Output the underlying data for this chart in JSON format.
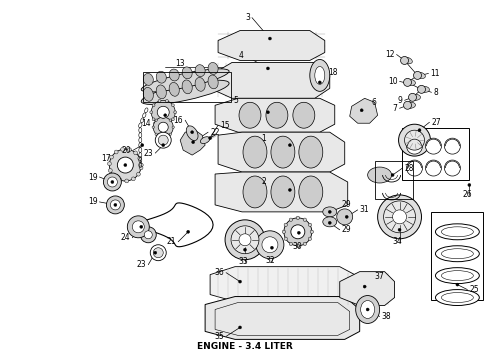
{
  "title": "ENGINE - 3.4 LITER",
  "title_fontsize": 6.5,
  "title_fontweight": "bold",
  "background_color": "#ffffff",
  "line_color": "#000000",
  "figsize": [
    4.9,
    3.6
  ],
  "dpi": 100,
  "label_fontsize": 5.5
}
